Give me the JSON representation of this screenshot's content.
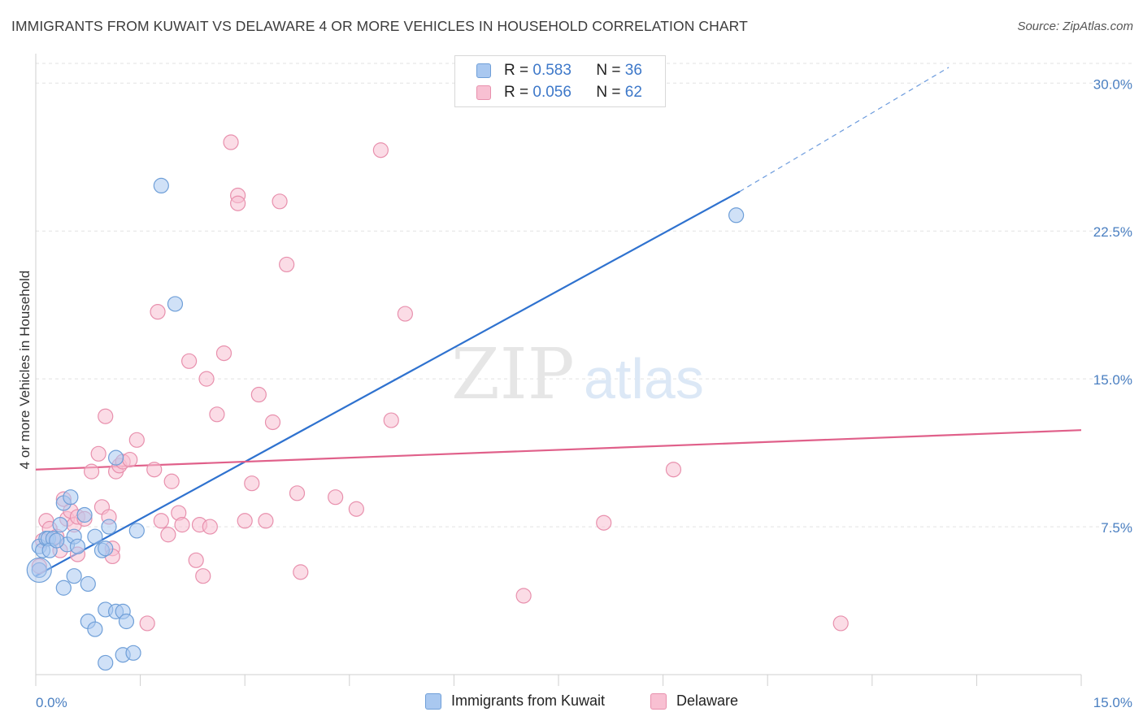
{
  "header": {
    "title": "IMMIGRANTS FROM KUWAIT VS DELAWARE 4 OR MORE VEHICLES IN HOUSEHOLD CORRELATION CHART",
    "source": "Source: ZipAtlas.com"
  },
  "legend": {
    "r_label": "R =",
    "n_label": "N =",
    "rows": [
      {
        "r": "0.583",
        "n": "36",
        "color": "#a9c8f0",
        "border": "#6f9fd8"
      },
      {
        "r": "0.056",
        "n": "62",
        "color": "#f8c0d2",
        "border": "#e890ad"
      }
    ]
  },
  "watermark": {
    "zip": "ZIP",
    "atlas": "atlas"
  },
  "bottom_legend": {
    "kuwait": "Immigrants from Kuwait",
    "delaware": "Delaware"
  },
  "chart_data": {
    "type": "scatter",
    "title": "IMMIGRANTS FROM KUWAIT VS DELAWARE 4 OR MORE VEHICLES IN HOUSEHOLD CORRELATION CHART",
    "xlabel": "",
    "ylabel": "4 or more Vehicles in Household",
    "xlim": [
      0,
      15
    ],
    "ylim": [
      0,
      31
    ],
    "x_tick_labels": [
      "0.0%",
      "15.0%"
    ],
    "y_ticks": [
      {
        "value": 7.5,
        "label": "7.5%"
      },
      {
        "value": 15.0,
        "label": "15.0%"
      },
      {
        "value": 22.5,
        "label": "22.5%"
      },
      {
        "value": 30.0,
        "label": "30.0%"
      }
    ],
    "series": [
      {
        "name": "Immigrants from Kuwait",
        "color": "#6f9fd8",
        "fill": "#a9c8f0",
        "trend": {
          "x0": 0.0,
          "y0": 5.0,
          "x1": 10.1,
          "y1": 24.5,
          "dashed_to_x": 13.1,
          "dashed_to_y": 30.8,
          "color": "#2f72cf"
        },
        "points": [
          [
            0.05,
            6.5
          ],
          [
            0.1,
            6.3
          ],
          [
            0.15,
            6.9
          ],
          [
            0.18,
            6.9
          ],
          [
            0.25,
            6.9
          ],
          [
            0.35,
            7.6
          ],
          [
            0.4,
            8.7
          ],
          [
            0.45,
            6.6
          ],
          [
            0.5,
            9.0
          ],
          [
            0.55,
            7.0
          ],
          [
            0.7,
            8.1
          ],
          [
            0.75,
            4.6
          ],
          [
            0.95,
            6.3
          ],
          [
            1.0,
            6.4
          ],
          [
            1.05,
            7.5
          ],
          [
            1.15,
            11.0
          ],
          [
            1.45,
            7.3
          ],
          [
            1.8,
            24.8
          ],
          [
            2.0,
            18.8
          ],
          [
            0.4,
            4.4
          ],
          [
            0.55,
            5.0
          ],
          [
            0.75,
            2.7
          ],
          [
            0.85,
            2.3
          ],
          [
            1.0,
            3.3
          ],
          [
            1.15,
            3.2
          ],
          [
            1.25,
            3.2
          ],
          [
            1.3,
            2.7
          ],
          [
            1.25,
            1.0
          ],
          [
            1.4,
            1.1
          ],
          [
            1.0,
            0.6
          ],
          [
            10.05,
            23.3
          ],
          [
            0.05,
            5.3
          ],
          [
            0.2,
            6.3
          ],
          [
            0.3,
            6.8
          ],
          [
            0.6,
            6.5
          ],
          [
            0.85,
            7.0
          ]
        ]
      },
      {
        "name": "Delaware",
        "color": "#e890ad",
        "fill": "#f8c0d2",
        "trend": {
          "x0": 0.0,
          "y0": 10.4,
          "x1": 15.0,
          "y1": 12.4,
          "color": "#e0608a"
        },
        "points": [
          [
            0.05,
            5.5
          ],
          [
            0.1,
            6.8
          ],
          [
            0.15,
            7.8
          ],
          [
            0.2,
            7.4
          ],
          [
            0.3,
            7.0
          ],
          [
            0.35,
            6.3
          ],
          [
            0.4,
            8.9
          ],
          [
            0.45,
            7.9
          ],
          [
            0.5,
            8.3
          ],
          [
            0.55,
            7.6
          ],
          [
            0.6,
            8.0
          ],
          [
            0.7,
            7.9
          ],
          [
            0.8,
            10.3
          ],
          [
            0.9,
            11.2
          ],
          [
            0.95,
            8.5
          ],
          [
            1.0,
            13.1
          ],
          [
            1.05,
            8.0
          ],
          [
            1.1,
            6.4
          ],
          [
            1.15,
            10.3
          ],
          [
            1.2,
            10.6
          ],
          [
            1.25,
            10.8
          ],
          [
            1.35,
            10.9
          ],
          [
            1.45,
            11.9
          ],
          [
            1.6,
            2.6
          ],
          [
            1.7,
            10.4
          ],
          [
            1.75,
            18.4
          ],
          [
            1.8,
            7.8
          ],
          [
            1.9,
            7.1
          ],
          [
            1.95,
            9.8
          ],
          [
            2.05,
            8.2
          ],
          [
            2.1,
            7.6
          ],
          [
            2.2,
            15.9
          ],
          [
            2.3,
            5.8
          ],
          [
            2.35,
            7.6
          ],
          [
            2.4,
            5.0
          ],
          [
            2.45,
            15.0
          ],
          [
            2.5,
            7.5
          ],
          [
            2.6,
            13.2
          ],
          [
            2.7,
            16.3
          ],
          [
            2.8,
            27.0
          ],
          [
            2.9,
            24.3
          ],
          [
            3.0,
            7.8
          ],
          [
            3.1,
            9.7
          ],
          [
            3.2,
            14.2
          ],
          [
            3.3,
            7.8
          ],
          [
            3.4,
            12.8
          ],
          [
            3.5,
            24.0
          ],
          [
            3.6,
            20.8
          ],
          [
            3.75,
            9.2
          ],
          [
            3.8,
            5.2
          ],
          [
            4.3,
            9.0
          ],
          [
            4.6,
            8.4
          ],
          [
            4.95,
            26.6
          ],
          [
            5.1,
            12.9
          ],
          [
            5.3,
            18.3
          ],
          [
            7.0,
            4.0
          ],
          [
            8.15,
            7.7
          ],
          [
            9.15,
            10.4
          ],
          [
            11.55,
            2.6
          ],
          [
            2.9,
            23.9
          ],
          [
            0.6,
            6.1
          ],
          [
            1.1,
            6.0
          ]
        ]
      }
    ]
  }
}
